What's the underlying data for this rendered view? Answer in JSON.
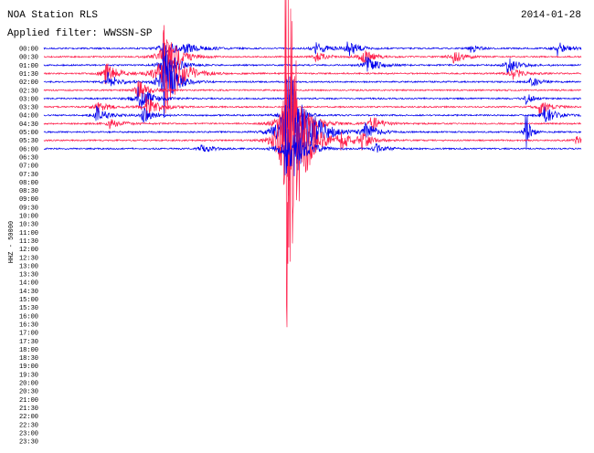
{
  "header": {
    "station": "NOA Station RLS",
    "filter": "Applied filter: WWSSN-SP",
    "date": "2014-01-28"
  },
  "channel": "HHZ - 50000",
  "rows": [
    "00:00",
    "00:30",
    "01:00",
    "01:30",
    "02:00",
    "02:30",
    "03:00",
    "03:30",
    "04:00",
    "04:30",
    "05:00",
    "05:30",
    "06:00",
    "06:30",
    "07:00",
    "07:30",
    "08:00",
    "08:30",
    "09:00",
    "09:30",
    "10:00",
    "10:30",
    "11:00",
    "11:30",
    "12:00",
    "12:30",
    "13:00",
    "13:30",
    "14:00",
    "14:30",
    "15:00",
    "15:30",
    "16:00",
    "16:30",
    "17:00",
    "17:30",
    "18:00",
    "18:30",
    "19:00",
    "19:30",
    "20:00",
    "20:30",
    "21:00",
    "21:30",
    "22:00",
    "22:30",
    "23:00",
    "23:30"
  ]
}
